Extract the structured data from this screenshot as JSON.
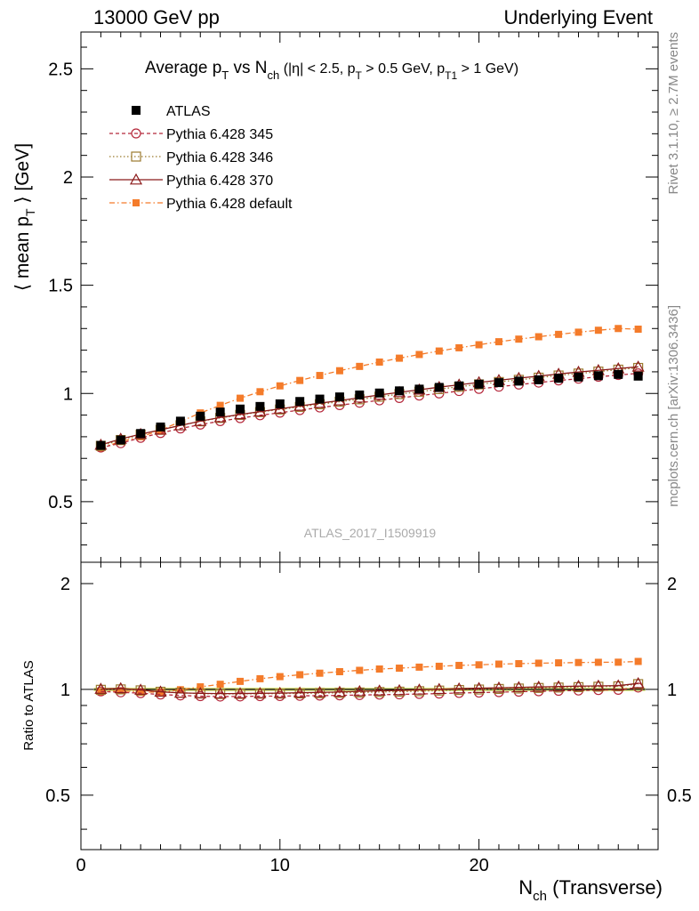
{
  "header": {
    "energy": "13000 GeV pp",
    "process": "Underlying Event"
  },
  "side_labels": {
    "rivet": "Rivet 3.1.10, ≥ 2.7M events",
    "mcplots": "mcplots.cern.ch [arXiv:1306.3436]"
  },
  "analysis_id": "ATLAS_2017_I1509919",
  "chart_data": {
    "type": "scatter",
    "title": "Average p_T vs N_ch (|η| < 2.5, p_T > 0.5 GeV, p_T1 > 1 GeV)",
    "title_parts": {
      "a": "Average p",
      "a_sub": "T",
      "b": " vs N",
      "b_sub": "ch",
      "c": " (|η| < 2.5, p",
      "c_sub": "T",
      "d": " > 0.5 GeV, p",
      "d_sub": "T1",
      "e": " > 1 GeV)"
    },
    "xlabel": "N_ch (Transverse)",
    "xlabel_parts": {
      "main": "N",
      "sub": "ch",
      "rest": " (Transverse)"
    },
    "ylabel": "⟨ mean p_T ⟩ [GeV]",
    "ylabel_parts": {
      "a": "⟨ mean p",
      "sub": "T",
      "b": " ⟩ [GeV]"
    },
    "ratio_ylabel": "Ratio to ATLAS",
    "xlim": [
      0,
      29
    ],
    "ylim": [
      0.22,
      2.67
    ],
    "ratio_ylim": [
      0.35,
      2.3
    ],
    "x_ticks": [
      0,
      10,
      20
    ],
    "y_ticks": [
      0.5,
      1,
      1.5,
      2,
      2.5
    ],
    "ratio_y_ticks": [
      0.5,
      1,
      2
    ],
    "x": [
      1,
      2,
      3,
      4,
      5,
      6,
      7,
      8,
      9,
      10,
      11,
      12,
      13,
      14,
      15,
      16,
      17,
      18,
      19,
      20,
      21,
      22,
      23,
      24,
      25,
      26,
      27,
      28
    ],
    "series": [
      {
        "name": "ATLAS",
        "color": "#000000",
        "marker": "filled-square",
        "values": [
          0.76,
          0.785,
          0.815,
          0.845,
          0.872,
          0.895,
          0.914,
          0.928,
          0.94,
          0.952,
          0.963,
          0.974,
          0.984,
          0.993,
          1.002,
          1.012,
          1.02,
          1.028,
          1.035,
          1.043,
          1.05,
          1.057,
          1.063,
          1.07,
          1.076,
          1.082,
          1.088,
          1.08
        ]
      },
      {
        "name": "Pythia 6.428 345",
        "color": "#b5283b",
        "marker": "open-circle",
        "dash": "4,3",
        "values": [
          0.75,
          0.77,
          0.795,
          0.817,
          0.838,
          0.856,
          0.872,
          0.886,
          0.899,
          0.911,
          0.923,
          0.935,
          0.946,
          0.957,
          0.968,
          0.979,
          0.99,
          1.0,
          1.011,
          1.021,
          1.031,
          1.041,
          1.05,
          1.06,
          1.068,
          1.077,
          1.085,
          1.093
        ]
      },
      {
        "name": "Pythia 6.428 346",
        "color": "#9b7a2f",
        "marker": "open-square",
        "dash": "1.5,2.5",
        "values": [
          0.758,
          0.785,
          0.81,
          0.832,
          0.853,
          0.871,
          0.887,
          0.901,
          0.914,
          0.926,
          0.938,
          0.95,
          0.962,
          0.973,
          0.985,
          0.997,
          1.008,
          1.02,
          1.031,
          1.042,
          1.053,
          1.063,
          1.073,
          1.083,
          1.092,
          1.101,
          1.11,
          1.118
        ]
      },
      {
        "name": "Pythia 6.428 370",
        "color": "#8b1a1a",
        "marker": "open-triangle",
        "dash": "",
        "values": [
          0.762,
          0.79,
          0.812,
          0.832,
          0.852,
          0.872,
          0.889,
          0.903,
          0.916,
          0.929,
          0.942,
          0.955,
          0.967,
          0.98,
          0.993,
          1.005,
          1.017,
          1.029,
          1.04,
          1.051,
          1.061,
          1.071,
          1.08,
          1.09,
          1.099,
          1.107,
          1.115,
          1.123
        ]
      },
      {
        "name": "Pythia 6.428 default",
        "color": "#f47b2a",
        "marker": "filled-square-small",
        "dash": "6,3,1.5,3",
        "values": [
          0.748,
          0.778,
          0.8,
          0.83,
          0.87,
          0.91,
          0.945,
          0.978,
          1.008,
          1.035,
          1.06,
          1.083,
          1.105,
          1.125,
          1.145,
          1.163,
          1.18,
          1.196,
          1.211,
          1.225,
          1.239,
          1.251,
          1.262,
          1.273,
          1.283,
          1.292,
          1.3,
          1.297
        ]
      }
    ]
  }
}
